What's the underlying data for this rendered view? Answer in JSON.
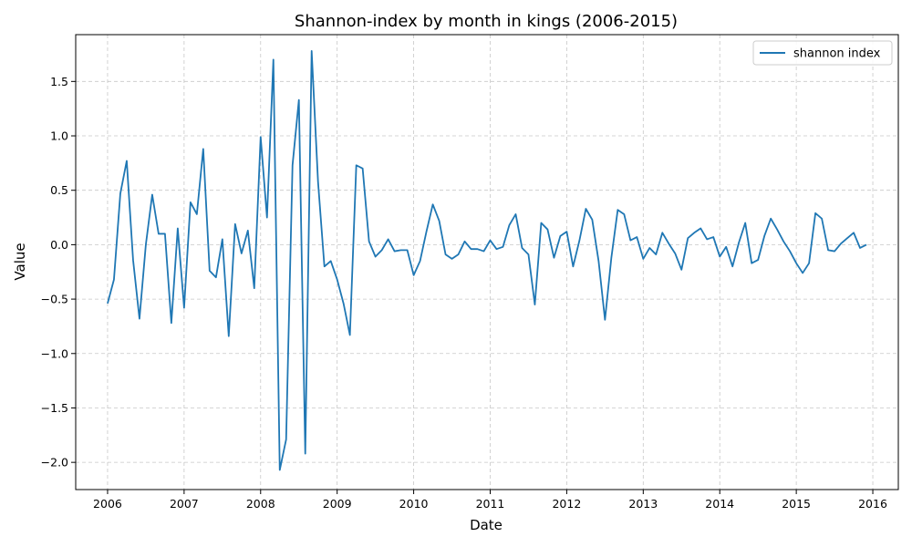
{
  "chart_data": {
    "type": "line",
    "title": "Shannon-index by month in kings (2006-2015)",
    "xlabel": "Date",
    "ylabel": "Value",
    "xlim": [
      "2005-08",
      "2016-05"
    ],
    "ylim": [
      -2.25,
      1.93
    ],
    "xticks": [
      "2006",
      "2007",
      "2008",
      "2009",
      "2010",
      "2011",
      "2012",
      "2013",
      "2014",
      "2015",
      "2016"
    ],
    "yticks": [
      "−2.0",
      "−1.5",
      "−1.0",
      "−0.5",
      "0.0",
      "0.5",
      "1.0",
      "1.5"
    ],
    "grid": true,
    "legend_position": "upper right",
    "series": [
      {
        "name": "shannon index",
        "color": "#1f77b4",
        "x": [
          "2006-01",
          "2006-02",
          "2006-03",
          "2006-04",
          "2006-05",
          "2006-06",
          "2006-07",
          "2006-08",
          "2006-09",
          "2006-10",
          "2006-11",
          "2006-12",
          "2007-01",
          "2007-02",
          "2007-03",
          "2007-04",
          "2007-05",
          "2007-06",
          "2007-07",
          "2007-08",
          "2007-09",
          "2007-10",
          "2007-11",
          "2007-12",
          "2008-01",
          "2008-02",
          "2008-03",
          "2008-04",
          "2008-05",
          "2008-06",
          "2008-07",
          "2008-08",
          "2008-09",
          "2008-10",
          "2008-11",
          "2008-12",
          "2009-01",
          "2009-02",
          "2009-03",
          "2009-04",
          "2009-05",
          "2009-06",
          "2009-07",
          "2009-08",
          "2009-09",
          "2009-10",
          "2009-11",
          "2009-12",
          "2010-01",
          "2010-02",
          "2010-03",
          "2010-04",
          "2010-05",
          "2010-06",
          "2010-07",
          "2010-08",
          "2010-09",
          "2010-10",
          "2010-11",
          "2010-12",
          "2011-01",
          "2011-02",
          "2011-03",
          "2011-04",
          "2011-05",
          "2011-06",
          "2011-07",
          "2011-08",
          "2011-09",
          "2011-10",
          "2011-11",
          "2011-12",
          "2012-01",
          "2012-02",
          "2012-03",
          "2012-04",
          "2012-05",
          "2012-06",
          "2012-07",
          "2012-08",
          "2012-09",
          "2012-10",
          "2012-11",
          "2012-12",
          "2013-01",
          "2013-02",
          "2013-03",
          "2013-04",
          "2013-05",
          "2013-06",
          "2013-07",
          "2013-08",
          "2013-09",
          "2013-10",
          "2013-11",
          "2013-12",
          "2014-01",
          "2014-02",
          "2014-03",
          "2014-04",
          "2014-05",
          "2014-06",
          "2014-07",
          "2014-08",
          "2014-09",
          "2014-10",
          "2014-11",
          "2014-12",
          "2015-01",
          "2015-02",
          "2015-03",
          "2015-04",
          "2015-05",
          "2015-06",
          "2015-07",
          "2015-08",
          "2015-09",
          "2015-10",
          "2015-11",
          "2015-12"
        ],
        "values": [
          -0.54,
          -0.32,
          0.47,
          0.77,
          -0.14,
          -0.68,
          0.0,
          0.46,
          0.1,
          0.1,
          -0.72,
          0.15,
          -0.58,
          0.39,
          0.28,
          0.88,
          -0.24,
          -0.3,
          0.05,
          -0.84,
          0.19,
          -0.08,
          0.13,
          -0.4,
          0.99,
          0.25,
          1.7,
          -2.07,
          -1.79,
          0.73,
          1.33,
          -1.92,
          1.78,
          0.58,
          -0.2,
          -0.15,
          -0.32,
          -0.54,
          -0.83,
          0.73,
          0.7,
          0.03,
          -0.11,
          -0.05,
          0.05,
          -0.06,
          -0.05,
          -0.05,
          -0.28,
          -0.15,
          0.12,
          0.37,
          0.22,
          -0.09,
          -0.13,
          -0.09,
          0.03,
          -0.04,
          -0.04,
          -0.06,
          0.04,
          -0.04,
          -0.02,
          0.18,
          0.28,
          -0.03,
          -0.09,
          -0.55,
          0.2,
          0.14,
          -0.12,
          0.08,
          0.12,
          -0.2,
          0.04,
          0.33,
          0.23,
          -0.15,
          -0.69,
          -0.12,
          0.32,
          0.28,
          0.04,
          0.07,
          -0.13,
          -0.03,
          -0.09,
          0.11,
          0.01,
          -0.08,
          -0.23,
          0.06,
          0.11,
          0.15,
          0.05,
          0.07,
          -0.11,
          -0.02,
          -0.2,
          0.02,
          0.2,
          -0.17,
          -0.14,
          0.08,
          0.24,
          0.14,
          0.03,
          -0.06,
          -0.17,
          -0.26,
          -0.17,
          0.29,
          0.24,
          -0.05,
          -0.06,
          0.01,
          0.06,
          0.11,
          -0.03,
          0.0
        ]
      }
    ]
  }
}
